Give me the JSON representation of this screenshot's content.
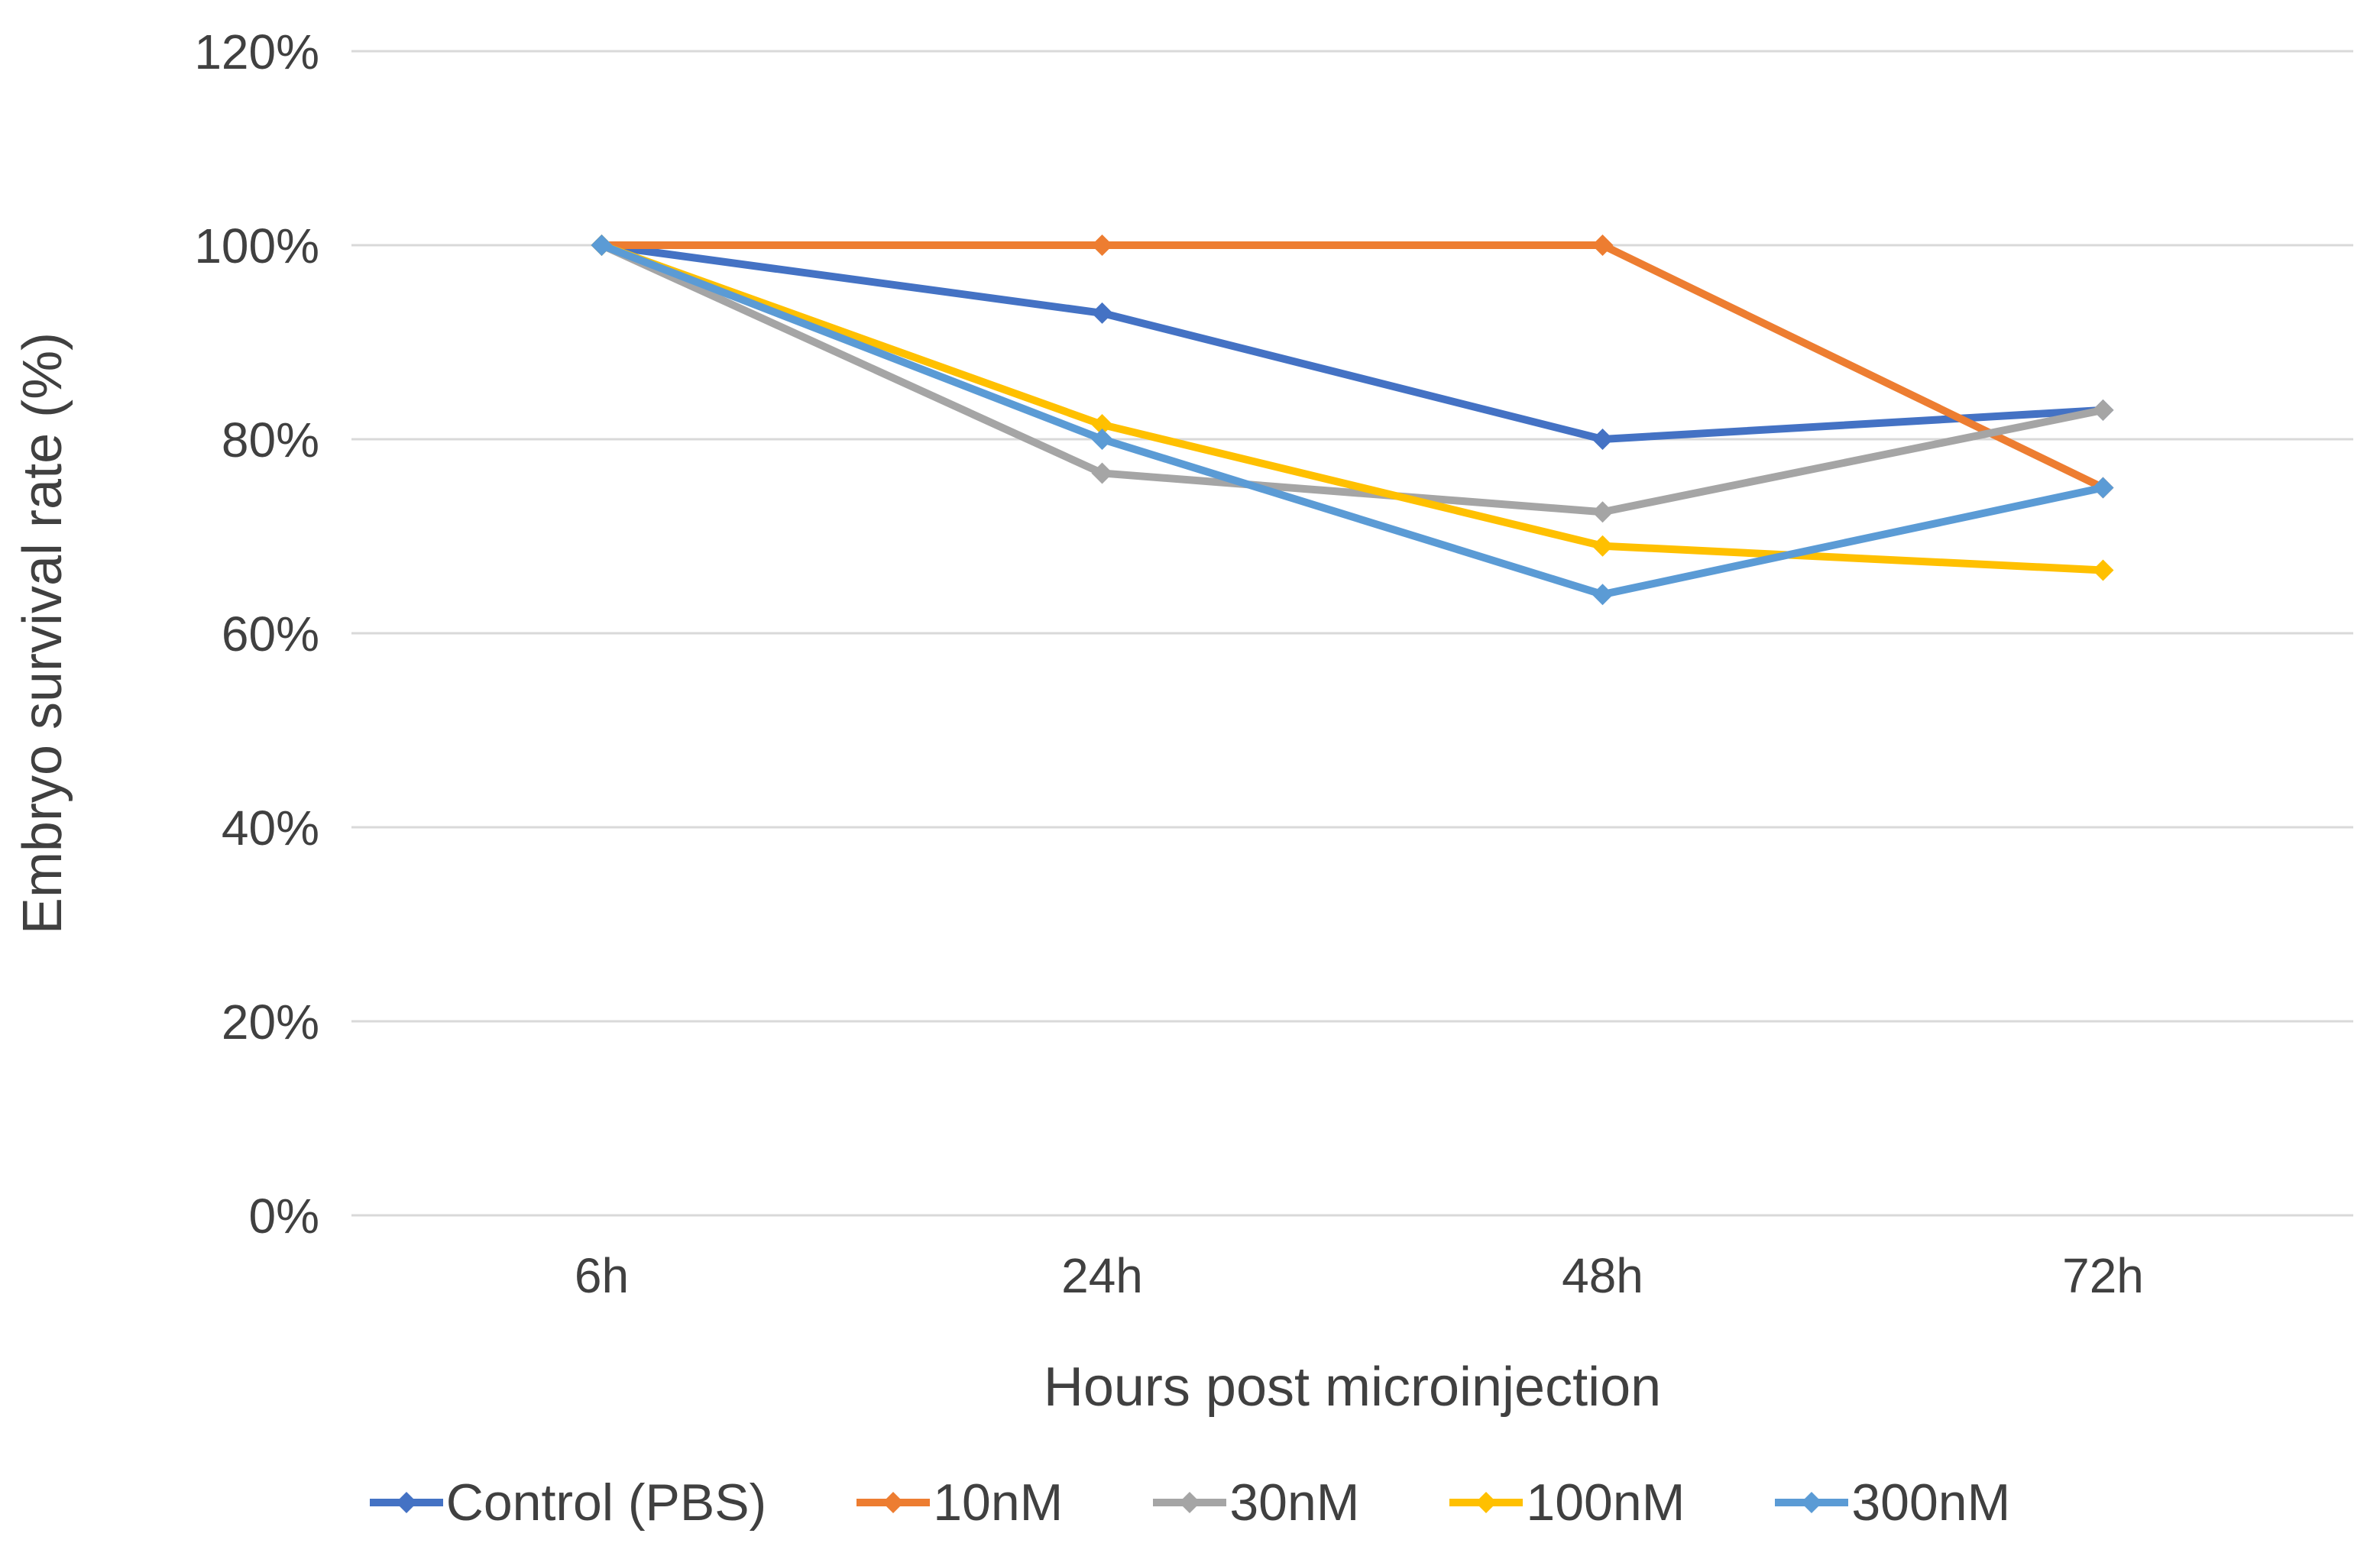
{
  "chart_data": {
    "type": "line",
    "title": "",
    "categories": [
      "6h",
      "24h",
      "48h",
      "72h"
    ],
    "series": [
      {
        "name": "Control (PBS)",
        "color": "#4472C4",
        "values": [
          100,
          93,
          80,
          83
        ]
      },
      {
        "name": "10nM",
        "color": "#ED7D31",
        "values": [
          100,
          100,
          100,
          75
        ]
      },
      {
        "name": "30nM",
        "color": "#A5A5A5",
        "values": [
          100,
          76.5,
          72.5,
          83
        ]
      },
      {
        "name": "100nM",
        "color": "#FFC000",
        "values": [
          100,
          81.5,
          69,
          66.5
        ]
      },
      {
        "name": "300nM",
        "color": "#5B9BD5",
        "values": [
          100,
          80,
          64,
          75
        ]
      }
    ],
    "xlabel": "Hours post microinjection",
    "ylabel": "Embryo survival rate (%)",
    "y_ticks": [
      "0%",
      "20%",
      "40%",
      "60%",
      "80%",
      "100%",
      "120%"
    ],
    "ylim": [
      0,
      120
    ],
    "y_tick_step": 20,
    "grid": true,
    "grid_color": "#D9D9D9",
    "text_color": "#404040",
    "marker": "diamond",
    "legend_position": "bottom"
  }
}
